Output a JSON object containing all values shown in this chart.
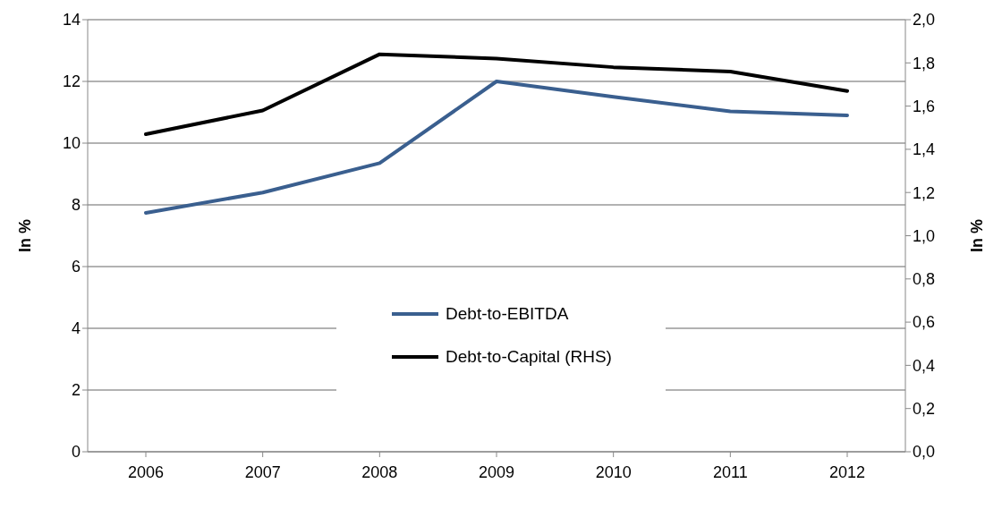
{
  "chart_data": {
    "type": "line",
    "categories": [
      "2006",
      "2007",
      "2008",
      "2009",
      "2010",
      "2011",
      "2012"
    ],
    "series": [
      {
        "name": "Debt-to-EBITDA",
        "color": "#3a5f8f",
        "values": [
          7.74,
          8.4,
          9.35,
          12.0,
          11.5,
          11.03,
          10.9
        ]
      },
      {
        "name": "Debt-to-Capital (RHS)",
        "color": "#000000",
        "axis": "y2",
        "values": [
          1.47,
          1.58,
          1.84,
          1.82,
          1.78,
          1.76,
          1.67
        ]
      }
    ],
    "ylabel": "In %",
    "y2label": "In %",
    "ylim": [
      0,
      14
    ],
    "yticks": [
      0,
      2,
      4,
      6,
      8,
      10,
      12,
      14
    ],
    "y2lim": [
      0,
      2
    ],
    "y2ticks": [
      {
        "value": 0,
        "label": "0,0"
      },
      {
        "value": 0.2,
        "label": "0,2"
      },
      {
        "value": 0.4,
        "label": "0,4"
      },
      {
        "value": 0.6,
        "label": "0,6"
      },
      {
        "value": 0.8,
        "label": "0,8"
      },
      {
        "value": 1,
        "label": "1,0"
      },
      {
        "value": 1.2,
        "label": "1,2"
      },
      {
        "value": 1.4,
        "label": "1,4"
      },
      {
        "value": 1.6,
        "label": "1,6"
      },
      {
        "value": 1.8,
        "label": "1,8"
      },
      {
        "value": 2,
        "label": "2,0"
      }
    ],
    "grid": "y",
    "legend": "center",
    "marker": "none",
    "line_style": "solid"
  }
}
